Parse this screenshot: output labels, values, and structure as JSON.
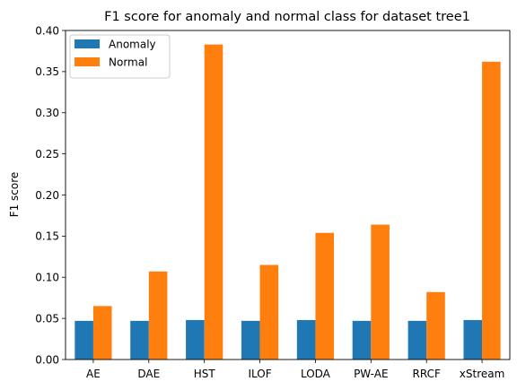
{
  "chart_data": {
    "type": "bar",
    "title": "F1 score for anomaly and normal class for dataset tree1",
    "xlabel": "",
    "ylabel": "F1 score",
    "categories": [
      "AE",
      "DAE",
      "HST",
      "ILOF",
      "LODA",
      "PW-AE",
      "RRCF",
      "xStream"
    ],
    "series": [
      {
        "name": "Anomaly",
        "color": "#1f77b4",
        "values": [
          0.047,
          0.047,
          0.048,
          0.047,
          0.048,
          0.047,
          0.047,
          0.048
        ]
      },
      {
        "name": "Normal",
        "color": "#ff7f0e",
        "values": [
          0.065,
          0.107,
          0.383,
          0.115,
          0.154,
          0.164,
          0.082,
          0.362
        ]
      }
    ],
    "ylim": [
      0,
      0.4
    ],
    "yticks": [
      "0.00",
      "0.05",
      "0.10",
      "0.15",
      "0.20",
      "0.25",
      "0.30",
      "0.35",
      "0.40"
    ],
    "grid": false,
    "legend_position": "top-left"
  }
}
